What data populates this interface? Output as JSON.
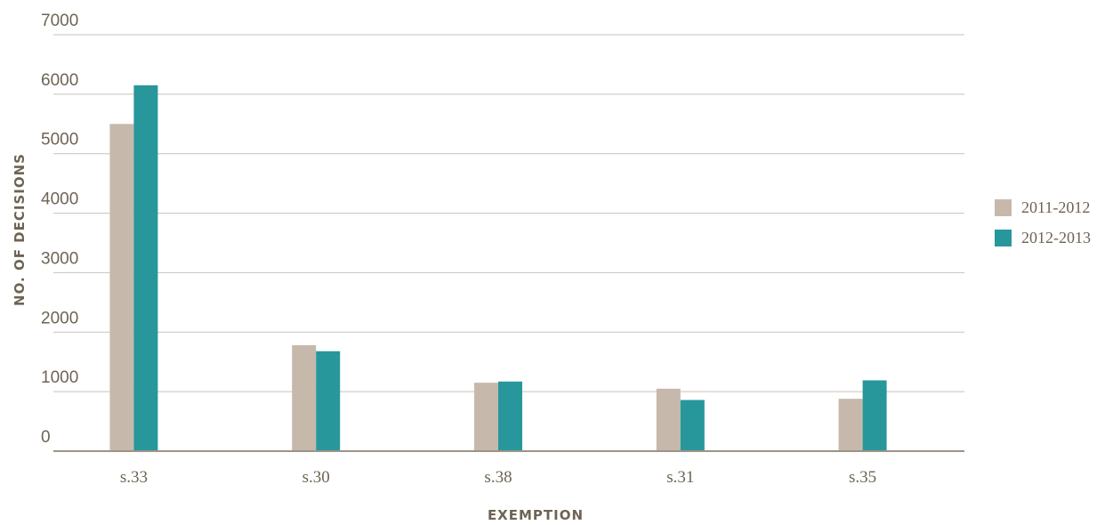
{
  "chart_data": {
    "type": "bar",
    "xlabel": "EXEMPTION",
    "ylabel": "NO. OF DECISIONS",
    "categories": [
      "s.33",
      "s.30",
      "s.38",
      "s.31",
      "s.35"
    ],
    "series": [
      {
        "name": "2011-2012",
        "color": "#c6b9ab",
        "values": [
          5500,
          1780,
          1150,
          1050,
          880
        ]
      },
      {
        "name": "2012-2013",
        "color": "#27979c",
        "values": [
          6150,
          1680,
          1170,
          860,
          1190
        ]
      }
    ],
    "ylim": [
      0,
      7000
    ],
    "yticks": [
      "0",
      "1000",
      "2000",
      "3000",
      "4000",
      "5000",
      "6000",
      "7000"
    ],
    "grid": true,
    "legend_position": "right"
  }
}
